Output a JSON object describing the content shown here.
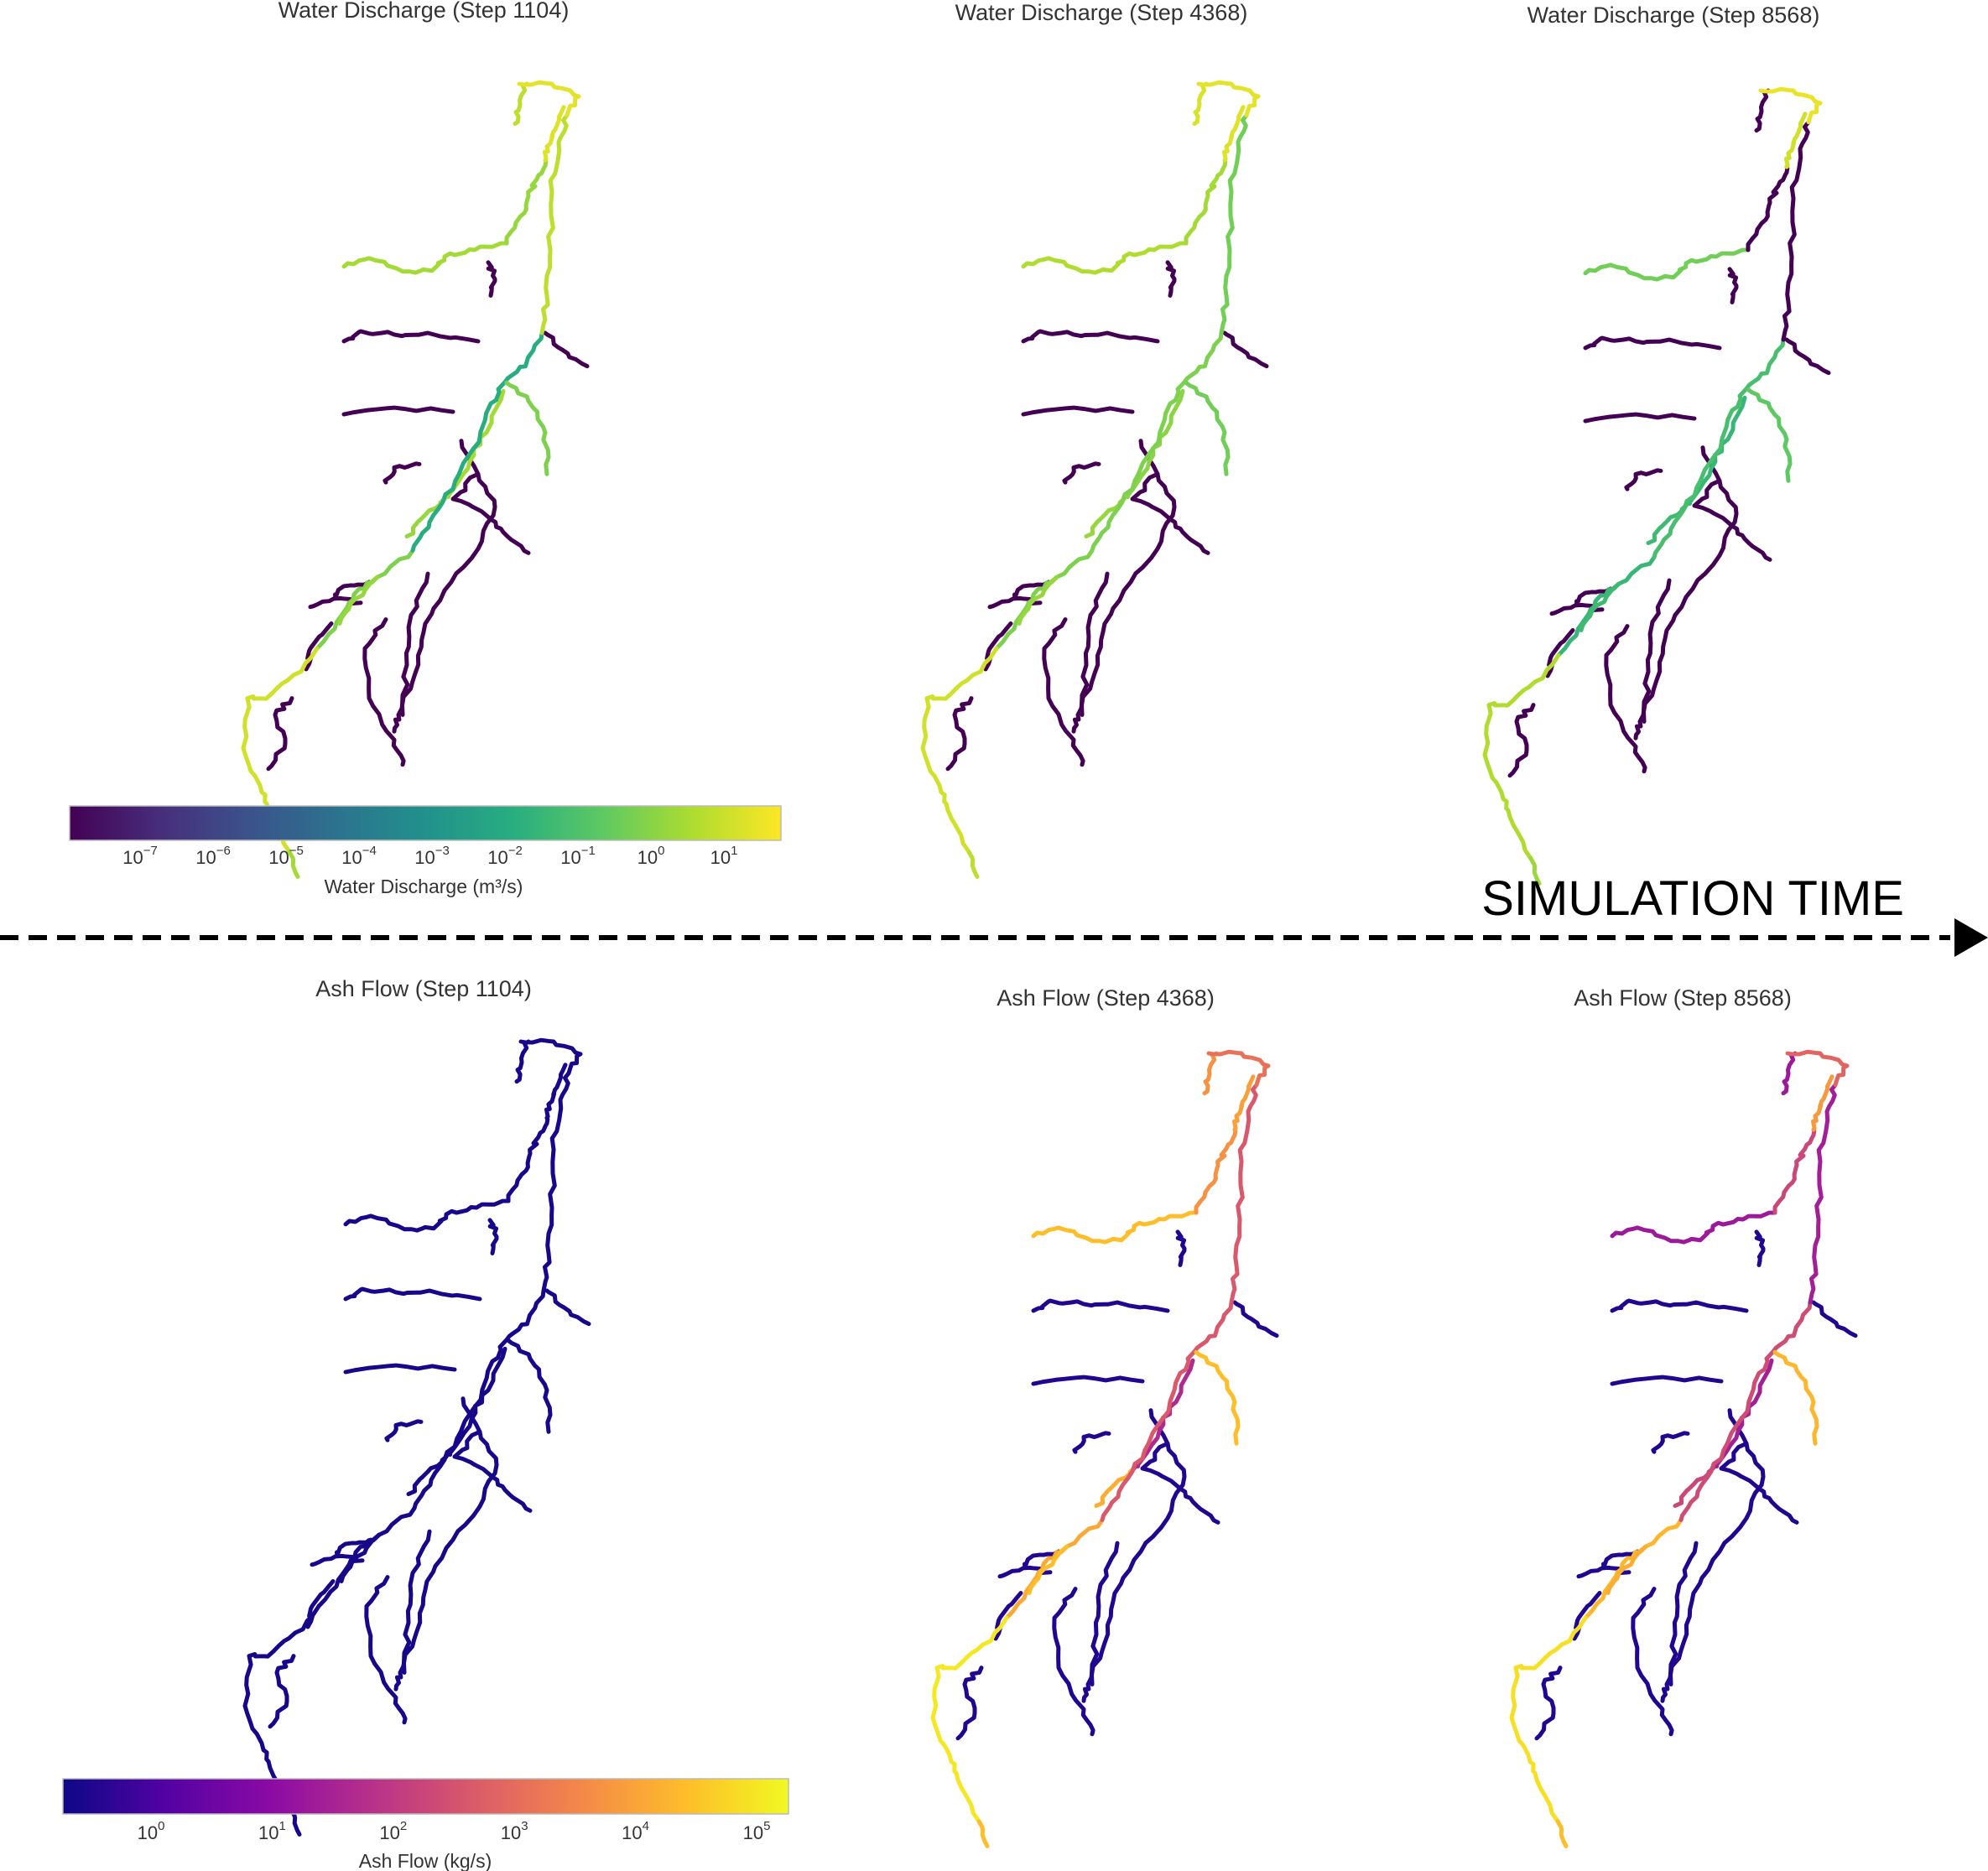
{
  "panels": [
    {
      "title": "Water Discharge (Step 1104)",
      "colormap": "viridis",
      "segments": {
        "n_tail": 0.9,
        "n_head": 0.95,
        "n_mid": 0.88,
        "loop": 0.96,
        "m1": 0.9,
        "m2": 0.86,
        "m3": 0.84,
        "m4": 0.84,
        "k2": 0.8,
        "sw1": 0.84,
        "sw2": 0.86,
        "k1": 0.62,
        "w_branch": 0.93,
        "rivs": 0.0,
        "ec_side": 0.8,
        "tip": 0.86
      }
    },
    {
      "title": "Water Discharge (Step 4368)",
      "colormap": "viridis",
      "segments": {
        "n_tail": 0.94,
        "n_head": 0.95,
        "n_mid": 0.72,
        "loop": 0.96,
        "m1": 0.78,
        "m2": 0.82,
        "m3": 0.84,
        "m4": 0.84,
        "k2": 0.8,
        "sw1": 0.86,
        "sw2": 0.88,
        "k1": 0.8,
        "w_branch": 0.93,
        "rivs": 0.0,
        "ec_side": 0.78,
        "tip": 0.9
      }
    },
    {
      "title": "Water Discharge (Step 8568)",
      "colormap": "viridis",
      "segments": {
        "n_tail": 0.0,
        "n_head": 0.93,
        "n_mid": 0.0,
        "loop": 0.97,
        "m1": 0.0,
        "m2": 0.66,
        "m3": 0.68,
        "m4": 0.68,
        "k2": 0.66,
        "sw1": 0.0,
        "sw2": 0.78,
        "k1": 0.7,
        "w_branch": 0.88,
        "rivs": 0.0,
        "ec_side": 0.75,
        "tip": 0.85
      }
    },
    {
      "title": "Ash Flow (Step 1104)",
      "colormap": "plasma",
      "segments": {
        "n_tail": 0.02,
        "n_head": 0.02,
        "n_mid": 0.02,
        "loop": 0.02,
        "m1": 0.02,
        "m2": 0.02,
        "m3": 0.02,
        "m4": 0.02,
        "k2": 0.02,
        "sw1": 0.02,
        "sw2": 0.02,
        "k1": 0.02,
        "w_branch": 0.02,
        "rivs": 0.02,
        "ec_side": 0.02,
        "tip": 0.02
      }
    },
    {
      "title": "Ash Flow (Step 4368)",
      "colormap": "plasma",
      "segments": {
        "n_tail": 0.74,
        "n_head": 0.78,
        "n_mid": 0.6,
        "loop": 0.64,
        "m1": 0.56,
        "m2": 0.4,
        "m3": 0.82,
        "m4": 0.86,
        "k2": 0.8,
        "sw1": 0.74,
        "sw2": 0.86,
        "k1": 0.56,
        "w_branch": 0.96,
        "rivs": 0.04,
        "ec_side": 0.86,
        "tip": 0.86
      }
    },
    {
      "title": "Ash Flow (Step 8568)",
      "colormap": "plasma",
      "segments": {
        "n_tail": 0.34,
        "n_head": 0.76,
        "n_mid": 0.34,
        "loop": 0.6,
        "m1": 0.36,
        "m2": 0.36,
        "m3": 0.5,
        "m4": 0.82,
        "k2": 0.84,
        "sw1": 0.5,
        "sw2": 0.34,
        "k1": 0.52,
        "w_branch": 0.94,
        "rivs": 0.04,
        "ec_side": 0.84,
        "tip": 0.86
      }
    }
  ],
  "colorbars": [
    {
      "label": "Water Discharge (m³/s)",
      "colormap": "viridis",
      "ticks": [
        {
          "base": "10",
          "exp": "−7"
        },
        {
          "base": "10",
          "exp": "−6"
        },
        {
          "base": "10",
          "exp": "−5"
        },
        {
          "base": "10",
          "exp": "−4"
        },
        {
          "base": "10",
          "exp": "−3"
        },
        {
          "base": "10",
          "exp": "−2"
        },
        {
          "base": "10",
          "exp": "−1"
        },
        {
          "base": "10",
          "exp": "0"
        },
        {
          "base": "10",
          "exp": "1"
        }
      ]
    },
    {
      "label": "Ash Flow (kg/s)",
      "colormap": "plasma",
      "ticks": [
        {
          "base": "10",
          "exp": "0"
        },
        {
          "base": "10",
          "exp": "1"
        },
        {
          "base": "10",
          "exp": "2"
        },
        {
          "base": "10",
          "exp": "3"
        },
        {
          "base": "10",
          "exp": "4"
        },
        {
          "base": "10",
          "exp": "5"
        }
      ]
    }
  ],
  "arrow": {
    "label": "SIMULATION TIME"
  },
  "colormaps": {
    "viridis": [
      "#440154",
      "#472d7b",
      "#3b528b",
      "#2c728e",
      "#21918c",
      "#28ae80",
      "#5ec962",
      "#addc30",
      "#fde725"
    ],
    "plasma": [
      "#0d0887",
      "#5302a3",
      "#8b0aa5",
      "#b83289",
      "#db5c68",
      "#f48849",
      "#febd2a",
      "#f0f921"
    ]
  }
}
